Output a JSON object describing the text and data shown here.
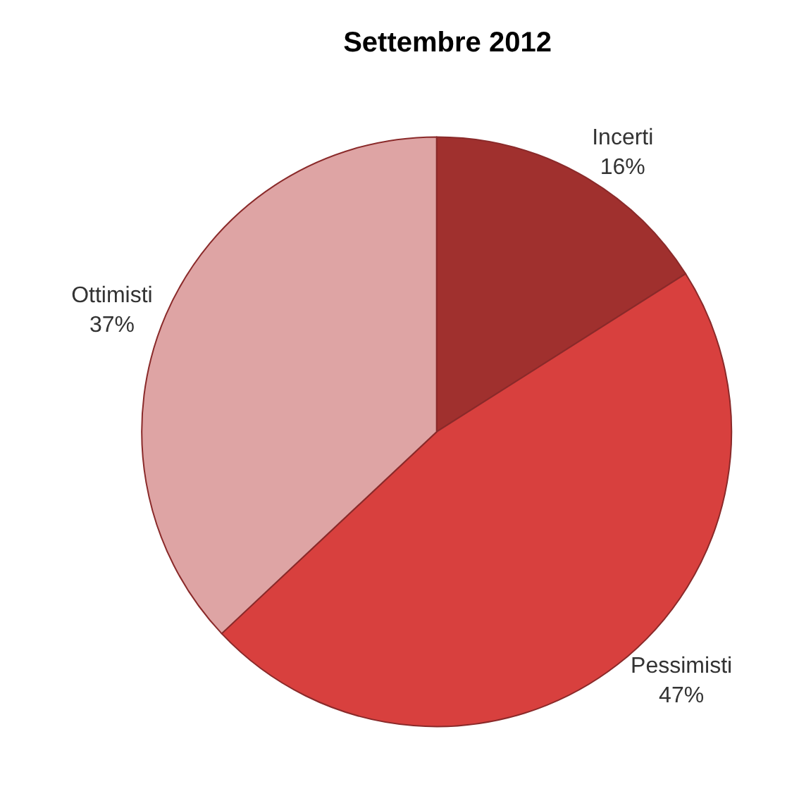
{
  "chart_data": {
    "type": "pie",
    "title": "Settembre 2012",
    "categories": [
      "Incerti",
      "Pessimisti",
      "Ottimisti"
    ],
    "values": [
      16,
      47,
      37
    ],
    "value_labels": [
      "16%",
      "47%",
      "37%"
    ],
    "colors": [
      "#a0302e",
      "#d8403e",
      "#dea4a4"
    ],
    "legend": false
  }
}
